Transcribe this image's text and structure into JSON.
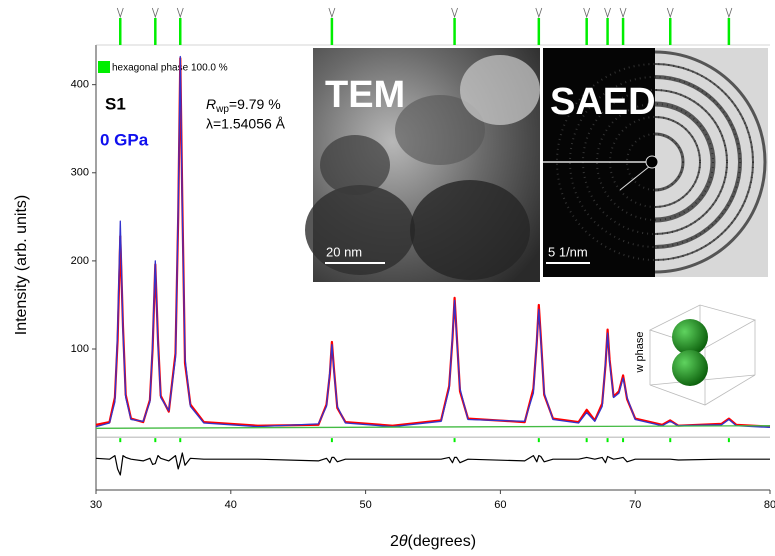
{
  "chart_data": {
    "type": "line",
    "xlabel": [
      "2",
      "θ",
      "(degrees)"
    ],
    "ylabel": "Intensity (arb. units)",
    "xlim": [
      30,
      80
    ],
    "xticks": [
      30,
      40,
      50,
      60,
      70,
      80
    ],
    "ylim": [
      -60,
      445
    ],
    "yticks": [
      100,
      200,
      300,
      400
    ],
    "x": [
      30,
      31,
      31.4,
      31.6,
      31.8,
      32.0,
      32.2,
      32.6,
      33.5,
      34.0,
      34.2,
      34.4,
      34.6,
      34.8,
      35.4,
      35.9,
      36.1,
      36.25,
      36.4,
      36.6,
      37.0,
      38,
      42,
      46.5,
      47.1,
      47.35,
      47.5,
      47.65,
      47.9,
      48.5,
      52,
      55.6,
      56.2,
      56.45,
      56.6,
      56.75,
      57.0,
      57.6,
      61.8,
      62.45,
      62.7,
      62.85,
      63.0,
      63.25,
      63.9,
      65.8,
      66.4,
      67.0,
      67.55,
      67.8,
      67.95,
      68.1,
      68.4,
      68.8,
      69.1,
      69.4,
      70.0,
      72.0,
      72.6,
      73.2,
      76.4,
      76.95,
      77.5,
      80
    ],
    "series": [
      {
        "color": "#ff0000",
        "width": 2.2,
        "values": [
          14,
          17,
          45,
          110,
          228,
          125,
          48,
          21,
          17,
          42,
          100,
          196,
          110,
          47,
          29,
          95,
          250,
          430,
          268,
          84,
          37,
          17,
          13,
          14,
          37,
          72,
          108,
          78,
          33,
          17,
          13,
          19,
          58,
          112,
          158,
          118,
          52,
          21,
          17,
          55,
          108,
          150,
          114,
          48,
          21,
          17,
          31,
          19,
          38,
          82,
          122,
          88,
          46,
          52,
          70,
          43,
          21,
          14,
          19,
          13,
          15,
          21,
          14,
          12
        ]
      },
      {
        "color": "#3333cc",
        "width": 1.3,
        "values": [
          12,
          16,
          40,
          120,
          245,
          120,
          45,
          20,
          18,
          40,
          105,
          200,
          105,
          45,
          30,
          90,
          260,
          432,
          260,
          90,
          35,
          16,
          12,
          15,
          35,
          75,
          105,
          75,
          35,
          16,
          12,
          18,
          55,
          115,
          155,
          115,
          55,
          20,
          18,
          50,
          110,
          145,
          110,
          50,
          20,
          16,
          28,
          18,
          35,
          85,
          118,
          85,
          45,
          50,
          67,
          45,
          20,
          13,
          18,
          13,
          14,
          20,
          13,
          11
        ]
      },
      {
        "color": "#44bb44",
        "width": 1.3,
        "x": [
          30,
          80
        ],
        "values": [
          10,
          13
        ]
      },
      {
        "color": "#000000",
        "width": 1.2,
        "values": [
          -24,
          -25,
          -21,
          -36,
          -43,
          -21,
          -23,
          -25,
          -27,
          -24,
          -31,
          -30,
          -21,
          -24,
          -27,
          -21,
          -36,
          -28,
          -18,
          -32,
          -24,
          -25,
          -25,
          -27,
          -24,
          -29,
          -23,
          -23,
          -28,
          -25,
          -25,
          -25,
          -23,
          -29,
          -23,
          -23,
          -29,
          -25,
          -27,
          -21,
          -28,
          -21,
          -22,
          -28,
          -25,
          -25,
          -23,
          -25,
          -23,
          -29,
          -22,
          -23,
          -25,
          -24,
          -23,
          -28,
          -25,
          -25,
          -25,
          -26,
          -25,
          -25,
          -25,
          -25
        ]
      }
    ],
    "phase": {
      "name": "hexagonal phase 100.0 %",
      "color": "#00ee00",
      "reflections": [
        31.8,
        34.4,
        36.25,
        47.5,
        56.6,
        62.85,
        66.4,
        67.95,
        69.1,
        72.6,
        76.95
      ]
    },
    "sample": "S1",
    "pressure": "0 GPa",
    "rwp": [
      "R",
      "wp",
      "=9.79 %"
    ],
    "wavelength": "λ=1.54056 Å",
    "insets": {
      "tem": "TEM",
      "tem_scale": "20 nm",
      "saed": "SAED",
      "saed_scale": "5 1/nm",
      "phase_plot": "w phase"
    }
  }
}
